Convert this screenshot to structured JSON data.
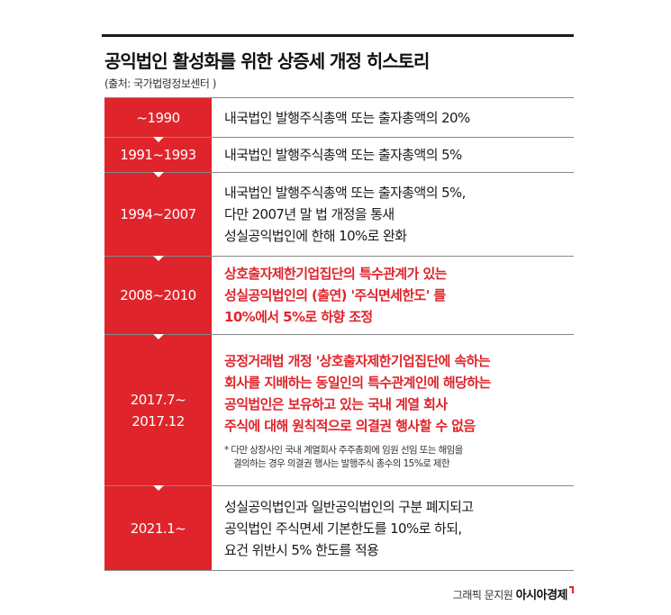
{
  "title": "공익법인 활성화를 위한 상증세 개정 히스토리",
  "source": "(출처: 국가법령정보센터 )",
  "rows": [
    {
      "period": [
        "~1990"
      ],
      "lines": [
        "내국법인 발행주식총액 또는 출자총액의 20%"
      ]
    },
    {
      "period": [
        "1991~1993"
      ],
      "lines": [
        "내국법인 발행주식총액 또는 출자총액의 5%"
      ]
    },
    {
      "period": [
        "1994~2007"
      ],
      "lines": [
        "내국법인 발행주식총액 또는 출자총액의 5%,",
        "다만 2007년 말 법 개정을 통새",
        "성실공익법인에  한해 10%로 완화"
      ]
    },
    {
      "period": [
        "2008~2010"
      ],
      "lines": [
        "상호출자제한기업집단의 특수관계가 있는",
        "성실공익법인의  (출연) '주식면세한도' 를",
        "10%에서  5%로 하향 조정"
      ]
    },
    {
      "period": [
        "2017.7~",
        "2017.12"
      ],
      "lines": [
        "공정거래법 개정 '상호출자제한기업집단에 속하는",
        "회사를 지배하는 동일인의 특수관계인에 해당하는",
        "공익법인은 보유하고 있는 국내 계열 회사",
        "주식에 대해 원칙적으로 의결권 행사할 수 없음"
      ],
      "note": [
        "* 다만 상장사인 국내 계열회사 주주총회에 임원 선임 또는 해임을",
        "결의하는 경우 의결권 행사는 발행주식 총수의 15%로 제한"
      ]
    },
    {
      "period": [
        "2021.1~"
      ],
      "lines": [
        "성실공익법인과 일반공익법인의 구분 폐지되고",
        "공익법인 주식면세 기본한도를 10%로 하되,",
        "요건 위반시 5% 한도를 적용"
      ]
    }
  ],
  "footer": {
    "credit": "그래픽 문지원",
    "brand": "아시아경제"
  },
  "colors": {
    "accent": "#e0242b",
    "text": "#1a1a1a"
  }
}
